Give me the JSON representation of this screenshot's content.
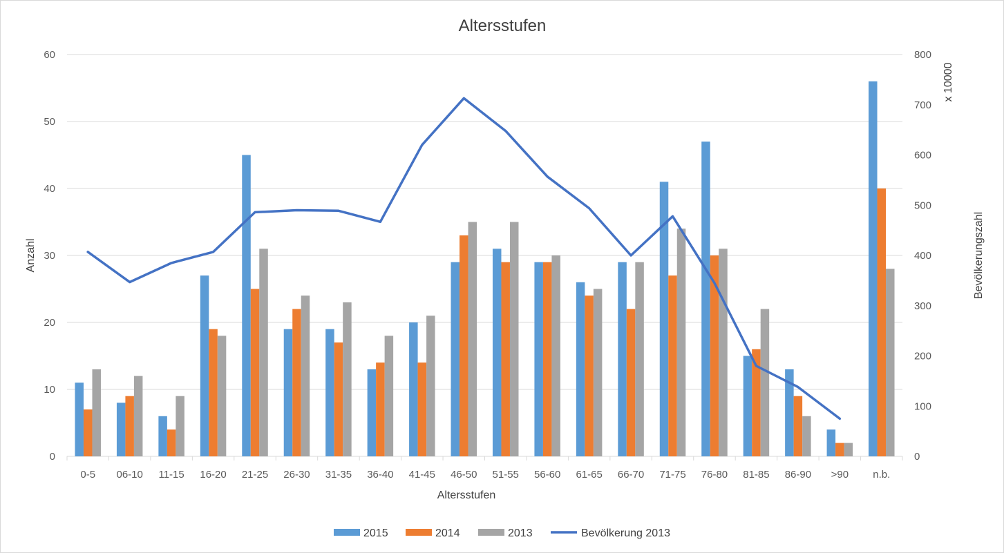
{
  "chart_data": {
    "type": "bar",
    "title": "Altersstufen",
    "xlabel": "Altersstufen",
    "ylabel": "Anzahl",
    "y2label": "Bevölkerungszahl",
    "y2_unit": "x 10000",
    "ylim": [
      0,
      60
    ],
    "y2lim": [
      0,
      800
    ],
    "yticks": [
      0,
      10,
      20,
      30,
      40,
      50,
      60
    ],
    "y2ticks": [
      0,
      100,
      200,
      300,
      400,
      500,
      600,
      700,
      800
    ],
    "grid": true,
    "legend_position": "bottom",
    "categories": [
      "0-5",
      "06-10",
      "11-15",
      "16-20",
      "21-25",
      "26-30",
      "31-35",
      "36-40",
      "41-45",
      "46-50",
      "51-55",
      "56-60",
      "61-65",
      "66-70",
      "71-75",
      "76-80",
      "81-85",
      "86-90",
      ">90",
      "n.b."
    ],
    "series": [
      {
        "name": "2015",
        "type": "bar",
        "axis": "left",
        "color": "#5B9BD5",
        "values": [
          11,
          8,
          6,
          27,
          45,
          19,
          19,
          13,
          20,
          29,
          31,
          29,
          26,
          29,
          41,
          47,
          15,
          13,
          4,
          56
        ]
      },
      {
        "name": "2014",
        "type": "bar",
        "axis": "left",
        "color": "#ED7D31",
        "values": [
          7,
          9,
          4,
          19,
          25,
          22,
          17,
          14,
          14,
          33,
          29,
          29,
          24,
          22,
          27,
          30,
          16,
          9,
          2,
          40
        ]
      },
      {
        "name": "2013",
        "type": "bar",
        "axis": "left",
        "color": "#A5A5A5",
        "values": [
          13,
          12,
          9,
          18,
          31,
          24,
          23,
          18,
          21,
          35,
          35,
          30,
          25,
          29,
          34,
          31,
          22,
          6,
          2,
          28
        ]
      },
      {
        "name": "Bevölkerung 2013",
        "type": "line",
        "axis": "right",
        "color": "#4472C4",
        "values": [
          407,
          347,
          385,
          407,
          486,
          490,
          489,
          467,
          620,
          713,
          648,
          557,
          494,
          400,
          478,
          345,
          180,
          138,
          75,
          null
        ]
      }
    ]
  }
}
